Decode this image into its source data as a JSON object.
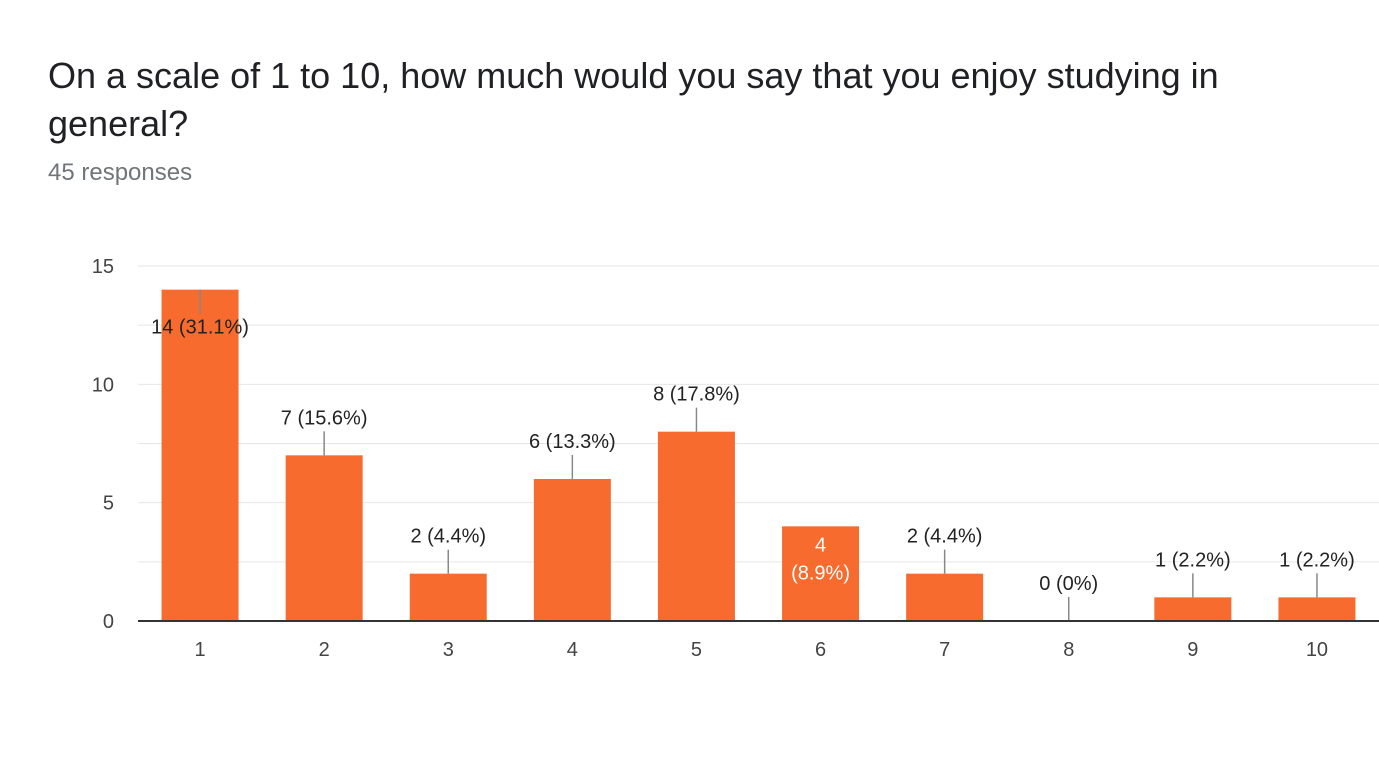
{
  "header": {
    "title": "On a scale of 1 to 10, how much would you say that you enjoy studying in general?",
    "responses": "45 responses"
  },
  "colors": {
    "bar": "#f76b2e",
    "grid": "#e6e6e6",
    "axis": "#333333",
    "leader": "#888888"
  },
  "chart_data": {
    "type": "bar",
    "categories": [
      "1",
      "2",
      "3",
      "4",
      "5",
      "6",
      "7",
      "8",
      "9",
      "10"
    ],
    "values": [
      14,
      7,
      2,
      6,
      8,
      4,
      2,
      0,
      1,
      1
    ],
    "data_labels": [
      "14 (31.1%)",
      "7 (15.6%)",
      "2 (4.4%)",
      "6 (13.3%)",
      "8 (17.8%)",
      "4 (8.9%)",
      "2 (4.4%)",
      "0 (0%)",
      "1 (2.2%)",
      "1 (2.2%)"
    ],
    "yticks": [
      0,
      5,
      10,
      15
    ],
    "ylim": [
      0,
      15
    ],
    "grid": true,
    "legend": "none"
  }
}
